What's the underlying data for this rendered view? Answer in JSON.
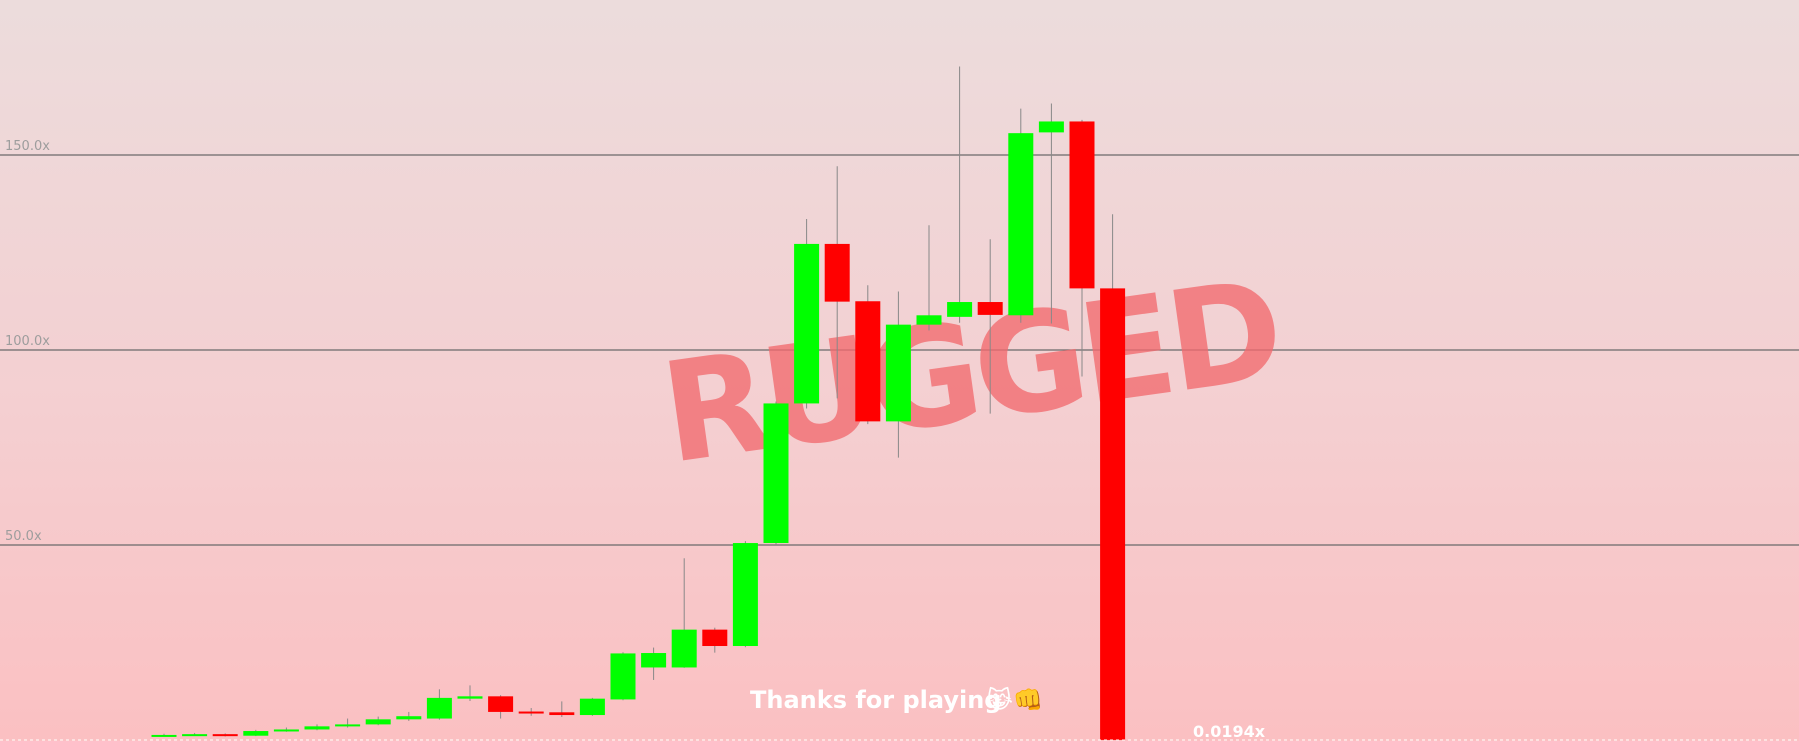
{
  "colors": {
    "up": "#00ff00",
    "down": "#ff0000",
    "wick": "#888888",
    "grid": "#6a6a6a",
    "watermark": "#f26b6f"
  },
  "overlay": {
    "watermark": "RUGGED",
    "message": "Thanks for playing",
    "message_icons": [
      "laughing-cat-icon",
      "fist-bump-icon"
    ],
    "message_emoji": "😹👊"
  },
  "current_value_label": "0.0194x",
  "chart_data": {
    "type": "candlestick",
    "y_unit": "x",
    "ylim": [
      0,
      190
    ],
    "grid_values": [
      50,
      100,
      150
    ],
    "grid_labels": [
      "50.0x",
      "100.0x",
      "150.0x"
    ],
    "candles": [
      {
        "open": 1.0,
        "close": 1.3,
        "high": 1.6,
        "low": 0.9
      },
      {
        "open": 1.3,
        "close": 1.5,
        "high": 1.8,
        "low": 1.1
      },
      {
        "open": 1.5,
        "close": 1.1,
        "high": 1.7,
        "low": 0.9
      },
      {
        "open": 1.1,
        "close": 2.3,
        "high": 2.6,
        "low": 1.0
      },
      {
        "open": 2.3,
        "close": 2.7,
        "high": 3.2,
        "low": 2.1
      },
      {
        "open": 2.7,
        "close": 3.5,
        "high": 4.0,
        "low": 2.5
      },
      {
        "open": 3.5,
        "close": 4.0,
        "high": 5.5,
        "low": 3.2
      },
      {
        "open": 4.0,
        "close": 5.3,
        "high": 6.0,
        "low": 3.8
      },
      {
        "open": 5.3,
        "close": 6.1,
        "high": 7.2,
        "low": 4.9
      },
      {
        "open": 5.5,
        "close": 10.8,
        "high": 13.0,
        "low": 5.2
      },
      {
        "open": 10.6,
        "close": 11.2,
        "high": 14.0,
        "low": 10.0
      },
      {
        "open": 11.2,
        "close": 7.2,
        "high": 11.5,
        "low": 5.5
      },
      {
        "open": 7.3,
        "close": 6.8,
        "high": 8.2,
        "low": 6.2
      },
      {
        "open": 7.1,
        "close": 6.4,
        "high": 9.9,
        "low": 5.9
      },
      {
        "open": 6.4,
        "close": 10.6,
        "high": 10.8,
        "low": 6.2
      },
      {
        "open": 10.4,
        "close": 22.2,
        "high": 22.5,
        "low": 10.2
      },
      {
        "open": 18.6,
        "close": 22.3,
        "high": 23.7,
        "low": 15.4
      },
      {
        "open": 18.6,
        "close": 28.3,
        "high": 46.6,
        "low": 18.5
      },
      {
        "open": 28.3,
        "close": 24.1,
        "high": 28.8,
        "low": 22.4
      },
      {
        "open": 24.1,
        "close": 50.5,
        "high": 51.0,
        "low": 23.8
      },
      {
        "open": 50.5,
        "close": 86.3,
        "high": 86.8,
        "low": 50.0
      },
      {
        "open": 86.3,
        "close": 127.2,
        "high": 133.6,
        "low": 85.0
      },
      {
        "open": 127.2,
        "close": 112.4,
        "high": 147.1,
        "low": 87.6
      },
      {
        "open": 112.5,
        "close": 81.7,
        "high": 116.6,
        "low": 81.0
      },
      {
        "open": 81.7,
        "close": 106.5,
        "high": 115.0,
        "low": 72.4
      },
      {
        "open": 106.5,
        "close": 108.9,
        "high": 132.0,
        "low": 105.0
      },
      {
        "open": 108.5,
        "close": 112.3,
        "high": 172.7,
        "low": 107.0
      },
      {
        "open": 112.3,
        "close": 109.0,
        "high": 128.4,
        "low": 83.7
      },
      {
        "open": 108.9,
        "close": 155.6,
        "high": 161.9,
        "low": 107.0
      },
      {
        "open": 155.8,
        "close": 158.6,
        "high": 163.2,
        "low": 106.8
      },
      {
        "open": 158.6,
        "close": 115.8,
        "high": 159.0,
        "low": 93.2
      },
      {
        "open": 115.8,
        "close": 0.0194,
        "high": 134.8,
        "low": 0.0194
      }
    ]
  }
}
